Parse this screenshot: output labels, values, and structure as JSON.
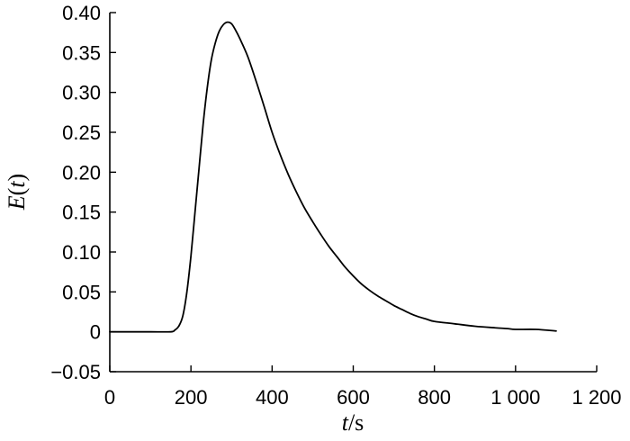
{
  "chart_data": {
    "type": "line",
    "title": "",
    "xlabel": {
      "var": "t",
      "unit": "/s"
    },
    "ylabel": {
      "var": "E",
      "open": "(",
      "arg": "t",
      "close": ")"
    },
    "xlim": [
      0,
      1200
    ],
    "ylim": [
      -0.05,
      0.4
    ],
    "xticks": [
      0,
      200,
      400,
      600,
      800,
      1000,
      1200
    ],
    "xtick_labels": [
      "0",
      "200",
      "400",
      "600",
      "800",
      "1 000",
      "1 200"
    ],
    "yticks": [
      -0.05,
      0,
      0.05,
      0.1,
      0.15,
      0.2,
      0.25,
      0.3,
      0.35,
      0.4
    ],
    "ytick_labels": [
      "−0.05",
      "0",
      "0.05",
      "0.10",
      "0.15",
      "0.20",
      "0.25",
      "0.30",
      "0.35",
      "0.40"
    ],
    "grid": false,
    "legend": "none",
    "line_color": "#000000",
    "series": [
      {
        "x": [
          0,
          50,
          100,
          150,
          160,
          170,
          180,
          190,
          200,
          210,
          220,
          230,
          240,
          250,
          260,
          270,
          280,
          290,
          300,
          310,
          320,
          340,
          360,
          380,
          400,
          420,
          440,
          460,
          480,
          500,
          520,
          540,
          560,
          580,
          600,
          620,
          640,
          660,
          680,
          700,
          720,
          740,
          760,
          780,
          800,
          850,
          900,
          950,
          980,
          1000,
          1050,
          1100
        ],
        "y": [
          0,
          0,
          0,
          0,
          0.002,
          0.007,
          0.02,
          0.05,
          0.095,
          0.15,
          0.205,
          0.26,
          0.305,
          0.34,
          0.362,
          0.377,
          0.385,
          0.388,
          0.386,
          0.378,
          0.368,
          0.345,
          0.315,
          0.283,
          0.25,
          0.222,
          0.197,
          0.175,
          0.155,
          0.138,
          0.122,
          0.107,
          0.094,
          0.081,
          0.07,
          0.06,
          0.052,
          0.045,
          0.039,
          0.033,
          0.028,
          0.023,
          0.019,
          0.016,
          0.013,
          0.01,
          0.007,
          0.005,
          0.004,
          0.003,
          0.003,
          0.001
        ]
      }
    ]
  }
}
